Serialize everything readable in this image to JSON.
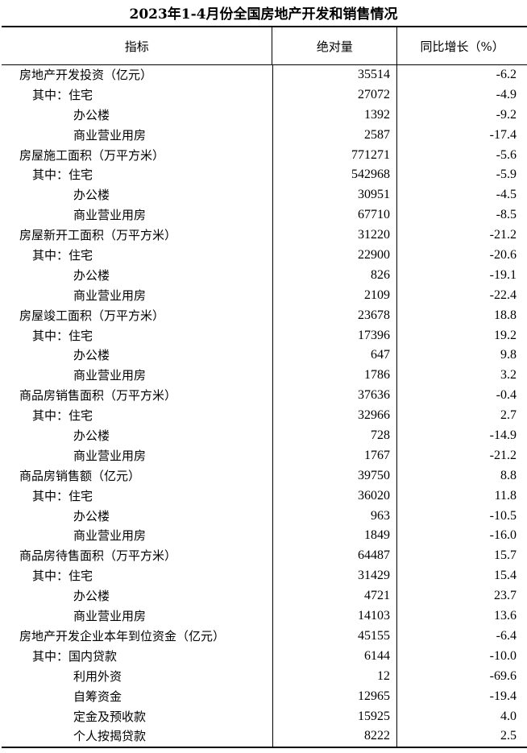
{
  "title": "2023年1-4月份全国房地产开发和销售情况",
  "columns": [
    "指标",
    "绝对量",
    "同比增长（%）"
  ],
  "rows": [
    {
      "label": "房地产开发投资（亿元）",
      "level": 0,
      "value": "35514",
      "growth": "-6.2"
    },
    {
      "label": "其中：住宅",
      "level": 1,
      "value": "27072",
      "growth": "-4.9"
    },
    {
      "label": "办公楼",
      "level": 2,
      "value": "1392",
      "growth": "-9.2"
    },
    {
      "label": "商业营业用房",
      "level": 2,
      "value": "2587",
      "growth": "-17.4"
    },
    {
      "label": "房屋施工面积（万平方米）",
      "level": 0,
      "value": "771271",
      "growth": "-5.6"
    },
    {
      "label": "其中：住宅",
      "level": 1,
      "value": "542968",
      "growth": "-5.9"
    },
    {
      "label": "办公楼",
      "level": 2,
      "value": "30951",
      "growth": "-4.5"
    },
    {
      "label": "商业营业用房",
      "level": 2,
      "value": "67710",
      "growth": "-8.5"
    },
    {
      "label": "房屋新开工面积（万平方米）",
      "level": 0,
      "value": "31220",
      "growth": "-21.2"
    },
    {
      "label": "其中：住宅",
      "level": 1,
      "value": "22900",
      "growth": "-20.6"
    },
    {
      "label": "办公楼",
      "level": 2,
      "value": "826",
      "growth": "-19.1"
    },
    {
      "label": "商业营业用房",
      "level": 2,
      "value": "2109",
      "growth": "-22.4"
    },
    {
      "label": "房屋竣工面积（万平方米）",
      "level": 0,
      "value": "23678",
      "growth": "18.8"
    },
    {
      "label": "其中：住宅",
      "level": 1,
      "value": "17396",
      "growth": "19.2"
    },
    {
      "label": "办公楼",
      "level": 2,
      "value": "647",
      "growth": "9.8"
    },
    {
      "label": "商业营业用房",
      "level": 2,
      "value": "1786",
      "growth": "3.2"
    },
    {
      "label": "商品房销售面积（万平方米）",
      "level": 0,
      "value": "37636",
      "growth": "-0.4"
    },
    {
      "label": "其中：住宅",
      "level": 1,
      "value": "32966",
      "growth": "2.7"
    },
    {
      "label": "办公楼",
      "level": 2,
      "value": "728",
      "growth": "-14.9"
    },
    {
      "label": "商业营业用房",
      "level": 2,
      "value": "1767",
      "growth": "-21.2"
    },
    {
      "label": "商品房销售额（亿元）",
      "level": 0,
      "value": "39750",
      "growth": "8.8"
    },
    {
      "label": "其中：住宅",
      "level": 1,
      "value": "36020",
      "growth": "11.8"
    },
    {
      "label": "办公楼",
      "level": 2,
      "value": "963",
      "growth": "-10.5"
    },
    {
      "label": "商业营业用房",
      "level": 2,
      "value": "1849",
      "growth": "-16.0"
    },
    {
      "label": "商品房待售面积（万平方米）",
      "level": 0,
      "value": "64487",
      "growth": "15.7"
    },
    {
      "label": "其中：住宅",
      "level": 1,
      "value": "31429",
      "growth": "15.4"
    },
    {
      "label": "办公楼",
      "level": 2,
      "value": "4721",
      "growth": "23.7"
    },
    {
      "label": "商业营业用房",
      "level": 2,
      "value": "14103",
      "growth": "13.6"
    },
    {
      "label": "房地产开发企业本年到位资金（亿元）",
      "level": 0,
      "value": "45155",
      "growth": "-6.4"
    },
    {
      "label": "其中：国内贷款",
      "level": 1,
      "value": "6144",
      "growth": "-10.0"
    },
    {
      "label": "利用外资",
      "level": 2,
      "value": "12",
      "growth": "-69.6"
    },
    {
      "label": "自筹资金",
      "level": 2,
      "value": "12965",
      "growth": "-19.4"
    },
    {
      "label": "定金及预收款",
      "level": 2,
      "value": "15925",
      "growth": "4.0"
    },
    {
      "label": "个人按揭贷款",
      "level": 2,
      "value": "8222",
      "growth": "2.5"
    }
  ]
}
